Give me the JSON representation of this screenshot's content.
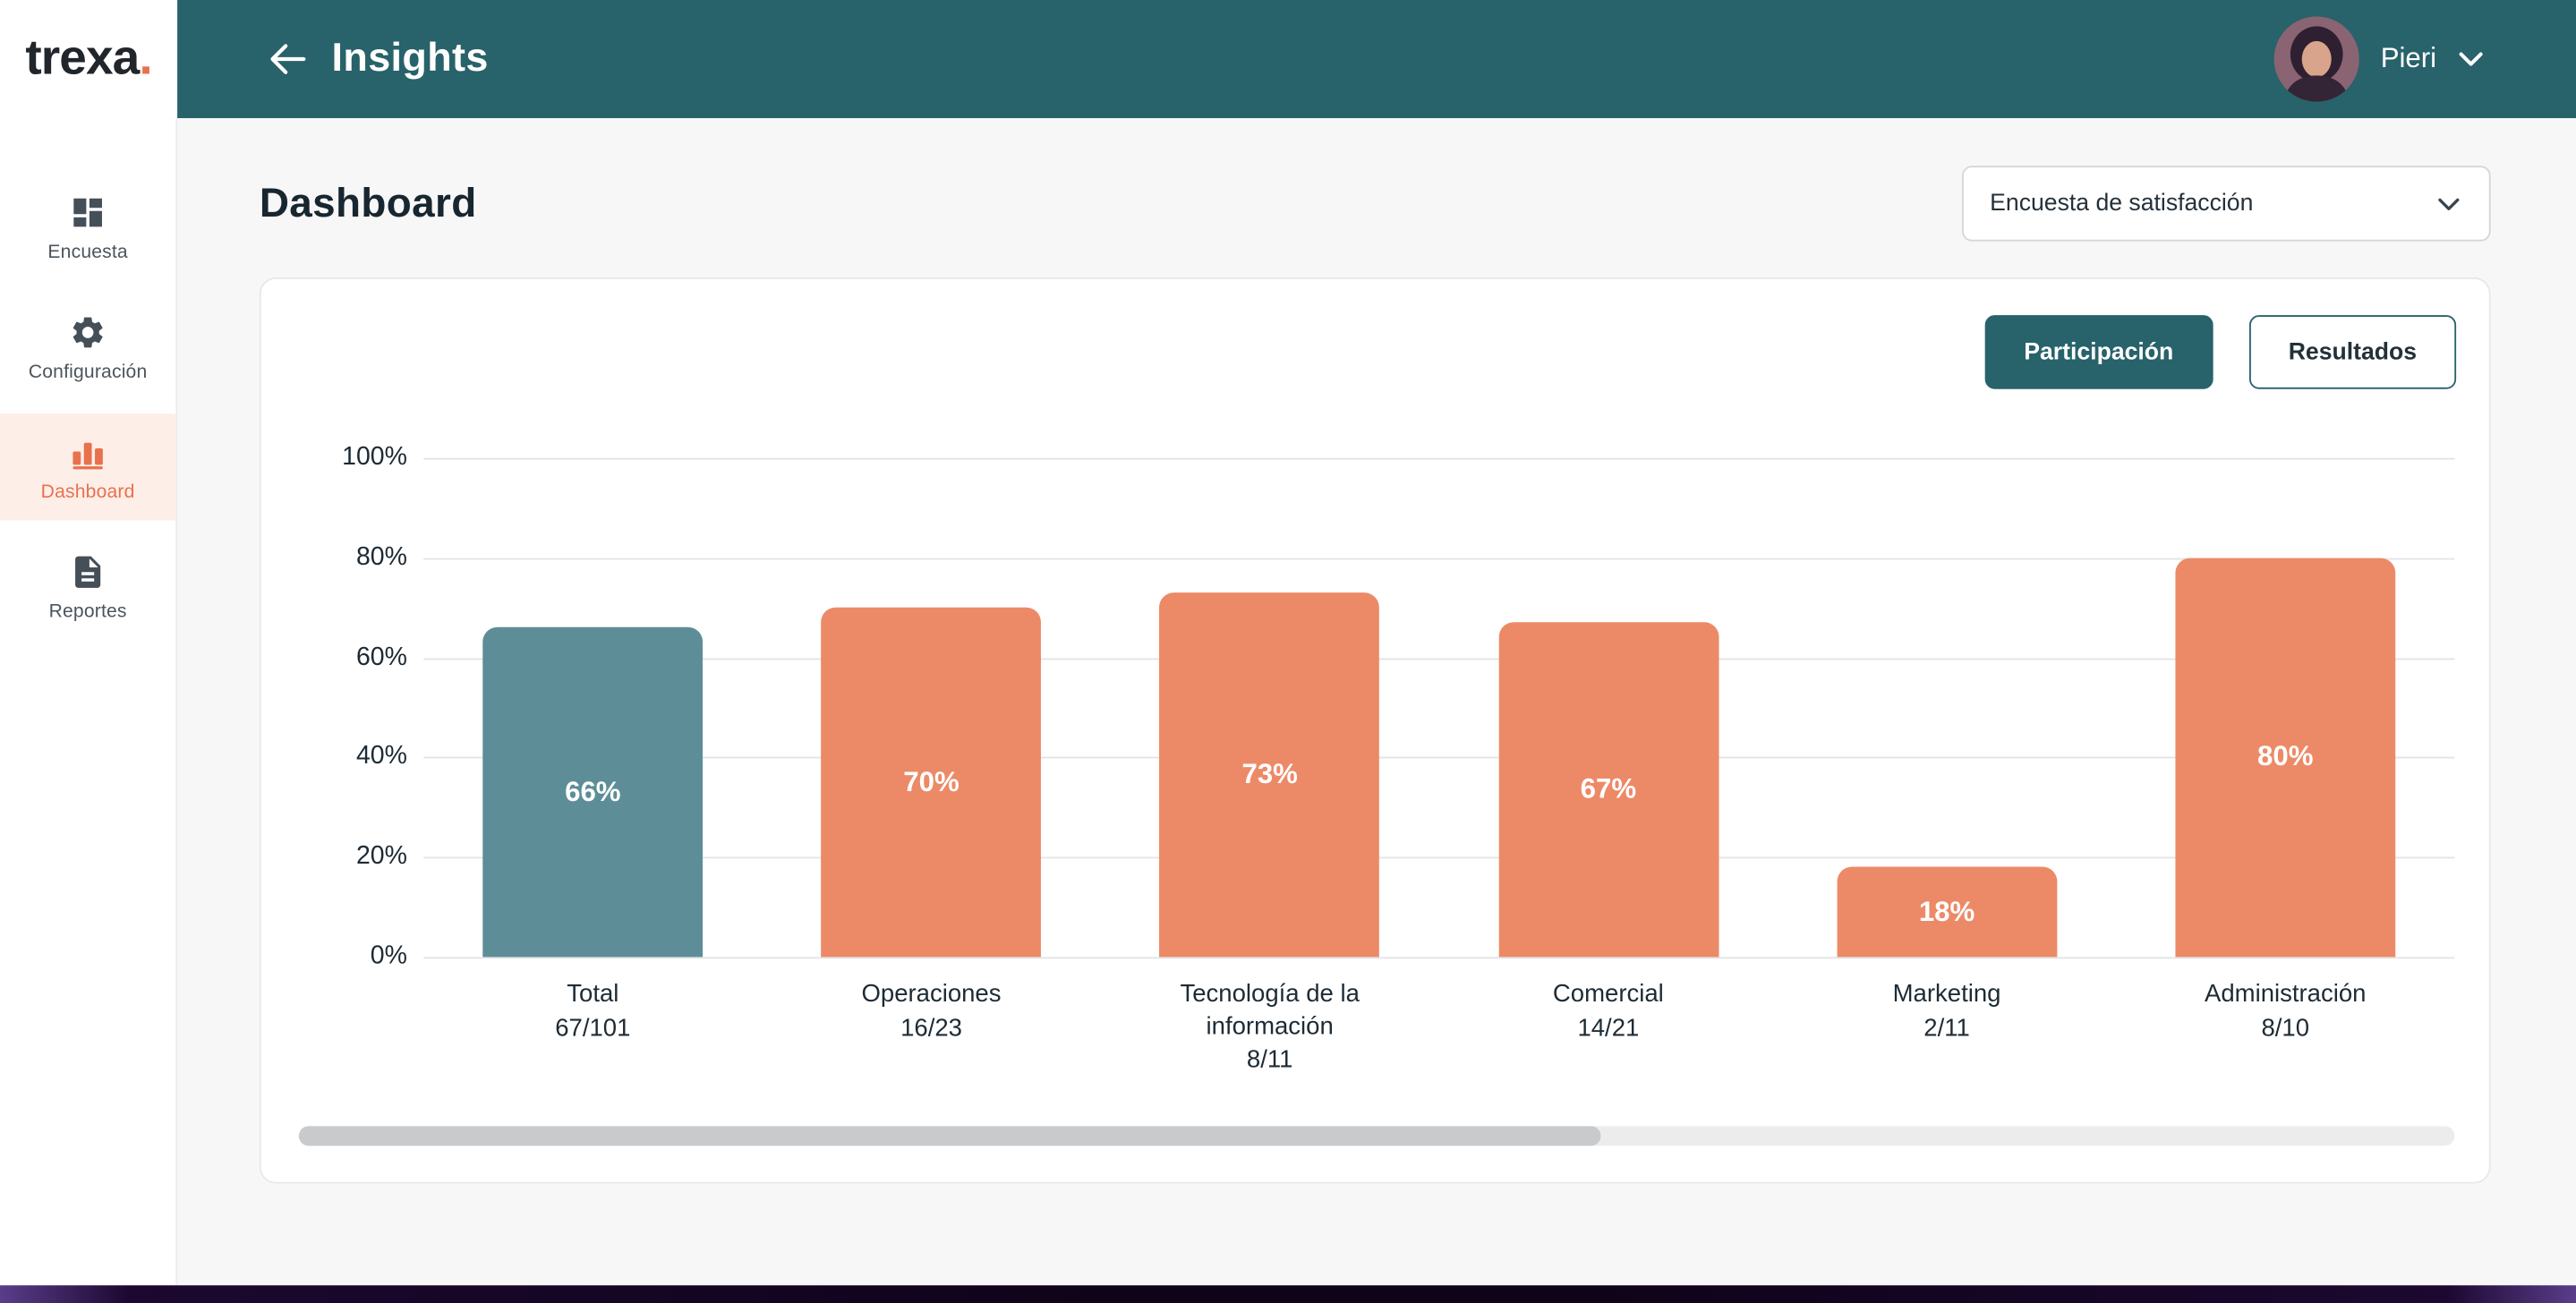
{
  "app": {
    "logo_text": "trexa",
    "logo_dot": ".",
    "header_title": "Insights",
    "user_name": "Pieri"
  },
  "sidebar": {
    "items": [
      {
        "label": "Encuesta",
        "icon": "survey-grid-icon",
        "active": false
      },
      {
        "label": "Configuración",
        "icon": "gear-icon",
        "active": false
      },
      {
        "label": "Dashboard",
        "icon": "bar-chart-icon",
        "active": true
      },
      {
        "label": "Reportes",
        "icon": "report-icon",
        "active": false
      }
    ]
  },
  "main": {
    "page_title": "Dashboard",
    "survey_select": {
      "value": "Encuesta de satisfacción"
    },
    "toggle": {
      "participation_label": "Participación",
      "results_label": "Resultados",
      "active": "Participación"
    }
  },
  "chart_data": {
    "type": "bar",
    "title": "",
    "xlabel": "",
    "ylabel": "",
    "ylim": [
      0,
      100
    ],
    "grid": true,
    "legend": false,
    "yticks": [
      "100%",
      "80%",
      "60%",
      "40%",
      "20%",
      "0%"
    ],
    "categories": [
      "Total",
      "Operaciones",
      "Tecnología de la información",
      "Comercial",
      "Marketing",
      "Administración"
    ],
    "sublabels": [
      "67/101",
      "16/23",
      "8/11",
      "14/21",
      "2/11",
      "8/10"
    ],
    "values": [
      66,
      70,
      73,
      67,
      18,
      80
    ],
    "value_labels": [
      "66%",
      "70%",
      "73%",
      "67%",
      "18%",
      "80%"
    ],
    "bar_colors": [
      "#5d8e97",
      "#ec8a67",
      "#ec8a67",
      "#ec8a67",
      "#ec8a67",
      "#ec8a67"
    ]
  },
  "colors": {
    "header_teal": "#28626a",
    "accent_orange": "#e8714e",
    "bar_salmon": "#ec8a67",
    "bar_teal": "#5d8e97",
    "active_item_bg": "#fdeee7"
  }
}
